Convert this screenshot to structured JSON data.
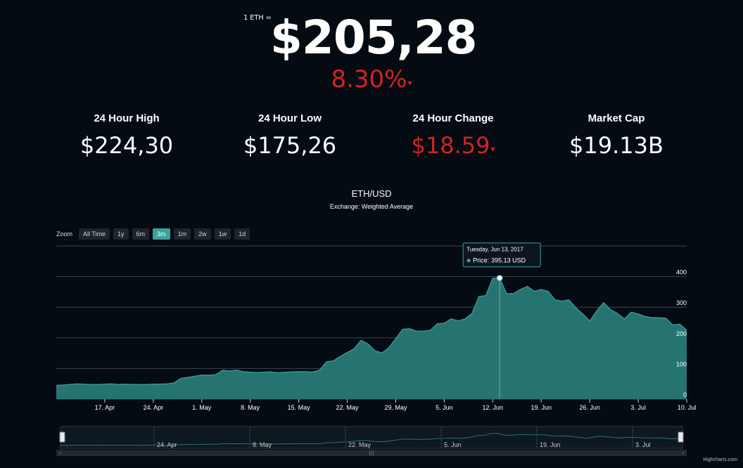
{
  "header": {
    "eth_label": "1 ETH =",
    "price": "$205,28",
    "change_pct": "8.30%",
    "arrow": "▾"
  },
  "stats": [
    {
      "label": "24 Hour High",
      "value": "$224,30",
      "negative": false
    },
    {
      "label": "24 Hour Low",
      "value": "$175,26",
      "negative": false
    },
    {
      "label": "24 Hour Change",
      "value": "$18.59",
      "negative": true
    },
    {
      "label": "Market Cap",
      "value": "$19.13B",
      "negative": false
    }
  ],
  "zoom": {
    "label": "Zoom",
    "buttons": [
      "All Time",
      "1y",
      "6m",
      "3m",
      "1m",
      "2w",
      "1w",
      "1d"
    ],
    "active": "3m"
  },
  "colors": {
    "area_fill": "#2a807c",
    "area_line": "#3ea19b",
    "negative": "#d32222",
    "background": "#050b12"
  },
  "credit": "Highcharts.com",
  "chart_data": {
    "type": "area",
    "title": "ETH/USD",
    "subtitle": "Exchange: Weighted Average",
    "x_start": "2017-04-10",
    "x_end": "2017-07-10",
    "ylim": [
      0,
      500
    ],
    "y_ticks": [
      0,
      100,
      200,
      300,
      400
    ],
    "x_tick_labels": [
      "17. Apr",
      "24. Apr",
      "1. May",
      "8. May",
      "15. May",
      "22. May",
      "29. May",
      "5. Jun",
      "12. Jun",
      "19. Jun",
      "26. Jun",
      "3. Jul",
      "10. Jul"
    ],
    "series": [
      {
        "values": [
          [
            "2017-04-10",
            45
          ],
          [
            "2017-04-11",
            46
          ],
          [
            "2017-04-12",
            48
          ],
          [
            "2017-04-13",
            50
          ],
          [
            "2017-04-14",
            49
          ],
          [
            "2017-04-15",
            48
          ],
          [
            "2017-04-16",
            48
          ],
          [
            "2017-04-17",
            49
          ],
          [
            "2017-04-18",
            50
          ],
          [
            "2017-04-19",
            48
          ],
          [
            "2017-04-20",
            49
          ],
          [
            "2017-04-21",
            48
          ],
          [
            "2017-04-22",
            48
          ],
          [
            "2017-04-23",
            48
          ],
          [
            "2017-04-24",
            49
          ],
          [
            "2017-04-25",
            49
          ],
          [
            "2017-04-26",
            50
          ],
          [
            "2017-04-27",
            53
          ],
          [
            "2017-04-28",
            68
          ],
          [
            "2017-04-29",
            71
          ],
          [
            "2017-04-30",
            75
          ],
          [
            "2017-05-01",
            79
          ],
          [
            "2017-05-02",
            78
          ],
          [
            "2017-05-03",
            80
          ],
          [
            "2017-05-04",
            94
          ],
          [
            "2017-05-05",
            92
          ],
          [
            "2017-05-06",
            95
          ],
          [
            "2017-05-07",
            90
          ],
          [
            "2017-05-08",
            88
          ],
          [
            "2017-05-09",
            87
          ],
          [
            "2017-05-10",
            88
          ],
          [
            "2017-05-11",
            89
          ],
          [
            "2017-05-12",
            86
          ],
          [
            "2017-05-13",
            88
          ],
          [
            "2017-05-14",
            89
          ],
          [
            "2017-05-15",
            90
          ],
          [
            "2017-05-16",
            90
          ],
          [
            "2017-05-17",
            88
          ],
          [
            "2017-05-18",
            95
          ],
          [
            "2017-05-19",
            122
          ],
          [
            "2017-05-20",
            125
          ],
          [
            "2017-05-21",
            140
          ],
          [
            "2017-05-22",
            152
          ],
          [
            "2017-05-23",
            165
          ],
          [
            "2017-05-24",
            192
          ],
          [
            "2017-05-25",
            180
          ],
          [
            "2017-05-26",
            158
          ],
          [
            "2017-05-27",
            151
          ],
          [
            "2017-05-28",
            168
          ],
          [
            "2017-05-29",
            198
          ],
          [
            "2017-05-30",
            228
          ],
          [
            "2017-05-31",
            230
          ],
          [
            "2017-06-01",
            222
          ],
          [
            "2017-06-02",
            222
          ],
          [
            "2017-06-03",
            225
          ],
          [
            "2017-06-04",
            246
          ],
          [
            "2017-06-05",
            248
          ],
          [
            "2017-06-06",
            262
          ],
          [
            "2017-06-07",
            256
          ],
          [
            "2017-06-08",
            262
          ],
          [
            "2017-06-09",
            280
          ],
          [
            "2017-06-10",
            335
          ],
          [
            "2017-06-11",
            338
          ],
          [
            "2017-06-12",
            395
          ],
          [
            "2017-06-13",
            395
          ],
          [
            "2017-06-14",
            344
          ],
          [
            "2017-06-15",
            345
          ],
          [
            "2017-06-16",
            358
          ],
          [
            "2017-06-17",
            368
          ],
          [
            "2017-06-18",
            352
          ],
          [
            "2017-06-19",
            358
          ],
          [
            "2017-06-20",
            352
          ],
          [
            "2017-06-21",
            324
          ],
          [
            "2017-06-22",
            320
          ],
          [
            "2017-06-23",
            324
          ],
          [
            "2017-06-24",
            298
          ],
          [
            "2017-06-25",
            278
          ],
          [
            "2017-06-26",
            255
          ],
          [
            "2017-06-27",
            288
          ],
          [
            "2017-06-28",
            315
          ],
          [
            "2017-06-29",
            292
          ],
          [
            "2017-06-30",
            280
          ],
          [
            "2017-07-01",
            262
          ],
          [
            "2017-07-02",
            284
          ],
          [
            "2017-07-03",
            278
          ],
          [
            "2017-07-04",
            270
          ],
          [
            "2017-07-05",
            266
          ],
          [
            "2017-07-06",
            266
          ],
          [
            "2017-07-07",
            264
          ],
          [
            "2017-07-08",
            242
          ],
          [
            "2017-07-09",
            245
          ],
          [
            "2017-07-10",
            225
          ]
        ]
      }
    ],
    "tooltip": {
      "date": "Tuesday, Jun 13, 2017",
      "label": "Price:",
      "value": "395.13 USD",
      "x": "2017-06-13",
      "y": 395.13
    },
    "navigator": {
      "tick_labels": [
        "24. Apr",
        "8. May",
        "22. May",
        "5. Jun",
        "19. Jun",
        "3. Jul"
      ]
    },
    "grid": true
  }
}
